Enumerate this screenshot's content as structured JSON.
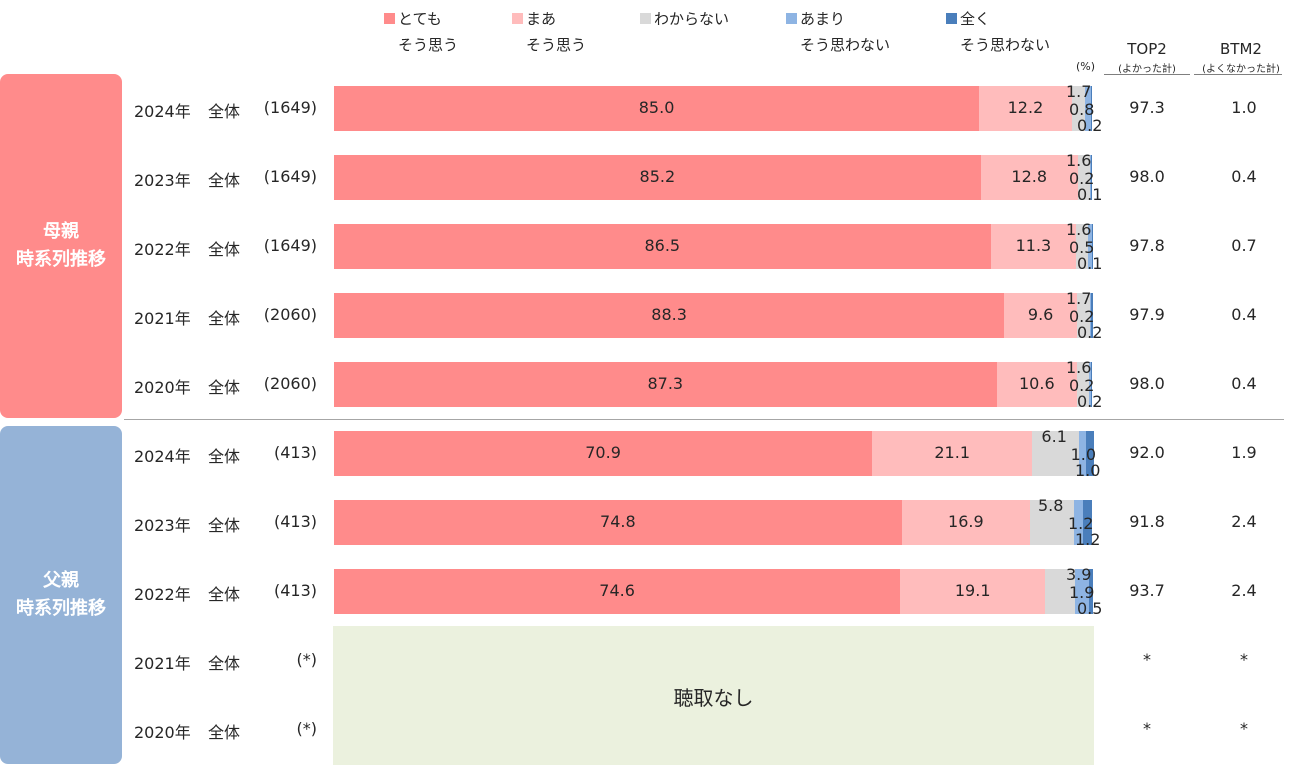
{
  "chart_data": {
    "type": "bar",
    "orientation": "horizontal-stacked-100",
    "unit": "(%)",
    "legend": [
      {
        "line1": "とても",
        "line2": "そう思う",
        "color": "#ff8b8b"
      },
      {
        "line1": "まあ",
        "line2": "そう思う",
        "color": "#ffbcbc"
      },
      {
        "line1": "わからない",
        "line2": "",
        "color": "#d9d9d9"
      },
      {
        "line1": "あまり",
        "line2": "そう思わない",
        "color": "#8eb4e3"
      },
      {
        "line1": "全く",
        "line2": "そう思わない",
        "color": "#4a7ebb"
      }
    ],
    "columns": {
      "top2": "TOP2",
      "top2_sub": "(よかった計)",
      "btm2": "BTM2",
      "btm2_sub": "(よくなかった計)"
    },
    "groups": [
      {
        "label_line1": "母親",
        "label_line2": "時系列推移",
        "color": "#ff8b8b"
      },
      {
        "label_line1": "父親",
        "label_line2": "時系列推移",
        "color": "#95b3d7"
      }
    ],
    "rows": [
      {
        "year": "2024年",
        "seg": "全体",
        "n": "(1649)",
        "values": [
          85.0,
          12.2,
          1.7,
          0.8,
          0.2
        ],
        "labels": [
          "85.0",
          "12.2",
          "1.7",
          "0.8",
          "0.2"
        ],
        "top2": "97.3",
        "btm2": "1.0"
      },
      {
        "year": "2023年",
        "seg": "全体",
        "n": "(1649)",
        "values": [
          85.2,
          12.8,
          1.6,
          0.2,
          0.1
        ],
        "labels": [
          "85.2",
          "12.8",
          "1.6",
          "0.2",
          "0.1"
        ],
        "top2": "98.0",
        "btm2": "0.4"
      },
      {
        "year": "2022年",
        "seg": "全体",
        "n": "(1649)",
        "values": [
          86.5,
          11.3,
          1.6,
          0.5,
          0.1
        ],
        "labels": [
          "86.5",
          "11.3",
          "1.6",
          "0.5",
          "0.1"
        ],
        "top2": "97.8",
        "btm2": "0.7"
      },
      {
        "year": "2021年",
        "seg": "全体",
        "n": "(2060)",
        "values": [
          88.3,
          9.6,
          1.7,
          0.2,
          0.2
        ],
        "labels": [
          "88.3",
          "9.6",
          "1.7",
          "0.2",
          "0.2"
        ],
        "top2": "97.9",
        "btm2": "0.4"
      },
      {
        "year": "2020年",
        "seg": "全体",
        "n": "(2060)",
        "values": [
          87.3,
          10.6,
          1.6,
          0.2,
          0.2
        ],
        "labels": [
          "87.3",
          "10.6",
          "1.6",
          "0.2",
          "0.2"
        ],
        "top2": "98.0",
        "btm2": "0.4"
      },
      {
        "year": "2024年",
        "seg": "全体",
        "n": "(413)",
        "values": [
          70.9,
          21.1,
          6.1,
          1.0,
          1.0
        ],
        "labels": [
          "70.9",
          "21.1",
          "6.1",
          "1.0",
          "1.0"
        ],
        "top2": "92.0",
        "btm2": "1.9"
      },
      {
        "year": "2023年",
        "seg": "全体",
        "n": "(413)",
        "values": [
          74.8,
          16.9,
          5.8,
          1.2,
          1.2
        ],
        "labels": [
          "74.8",
          "16.9",
          "5.8",
          "1.2",
          "1.2"
        ],
        "top2": "91.8",
        "btm2": "2.4"
      },
      {
        "year": "2022年",
        "seg": "全体",
        "n": "(413)",
        "values": [
          74.6,
          19.1,
          3.9,
          1.9,
          0.5
        ],
        "labels": [
          "74.6",
          "19.1",
          "3.9",
          "1.9",
          "0.5"
        ],
        "top2": "93.7",
        "btm2": "2.4"
      },
      {
        "year": "2021年",
        "seg": "全体",
        "n": "(*)",
        "values": null,
        "labels": null,
        "top2": "*",
        "btm2": "*"
      },
      {
        "year": "2020年",
        "seg": "全体",
        "n": "(*)",
        "values": null,
        "labels": null,
        "top2": "*",
        "btm2": "*"
      }
    ],
    "no_data_label": "聴取なし",
    "no_data_color": "#ebf1de"
  }
}
